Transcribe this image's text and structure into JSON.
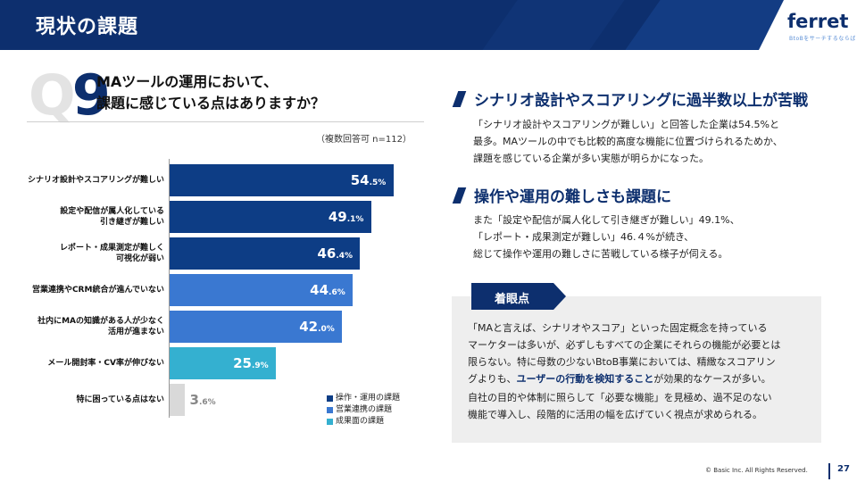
{
  "header": {
    "title": "現状の課題",
    "brand": "ferret",
    "brand_tagline": "BtoBをサーチするならば"
  },
  "question": {
    "mark_q": "Q",
    "mark_num": "9",
    "line1": "MAツールの運用において、",
    "line2": "課題に感じている点はありますか？",
    "note": "（複数回答可 n=112）"
  },
  "chart_data": {
    "type": "bar",
    "orientation": "horizontal",
    "unit": "%",
    "xlim": [
      0,
      60
    ],
    "categories": [
      [
        "シナリオ設計やスコアリングが難しい"
      ],
      [
        "設定や配信が属人化している",
        "引き継ぎが難しい"
      ],
      [
        "レポート・成果測定が難しく",
        "可視化が弱い"
      ],
      [
        "営業連携やCRM統合が進んでいない"
      ],
      [
        "社内にMAの知識がある人が少なく",
        "活用が進まない"
      ],
      [
        "メール開封率・CV率が伸びない"
      ],
      [
        "特に困っている点はない"
      ]
    ],
    "values": [
      54.5,
      49.1,
      46.4,
      44.6,
      42.0,
      25.9,
      3.6
    ],
    "value_labels": [
      {
        "int": "54",
        "dec": ".5%"
      },
      {
        "int": "49",
        "dec": ".1%"
      },
      {
        "int": "46",
        "dec": ".4%"
      },
      {
        "int": "44",
        "dec": ".6%"
      },
      {
        "int": "42",
        "dec": ".0%"
      },
      {
        "int": "25",
        "dec": ".9%"
      },
      {
        "int": "3",
        "dec": ".6%"
      }
    ],
    "bar_groups": [
      "ops",
      "ops",
      "ops",
      "sales",
      "sales",
      "result",
      "none"
    ],
    "colors": {
      "ops": "#0d3d85",
      "sales": "#3a78d1",
      "result": "#34b0d0",
      "none": "#d9d9d9"
    },
    "legend": [
      {
        "label": "操作・運用の課題",
        "color": "#0d3d85"
      },
      {
        "label": "営業連携の課題",
        "color": "#3a78d1"
      },
      {
        "label": "成果面の課題",
        "color": "#34b0d0"
      }
    ]
  },
  "section1": {
    "heading": "シナリオ設計やスコアリングに過半数以上が苦戦",
    "lines": [
      "「シナリオ設計やスコアリングが難しい」と回答した企業は54.5%と",
      "最多。MAツールの中でも比較的高度な機能に位置づけられるためか、",
      "課題を感じている企業が多い実態が明らかになった。"
    ]
  },
  "section2": {
    "heading": "操作や運用の難しさも課題に",
    "lines": [
      "また「設定や配信が属人化して引き継ぎが難しい」49.1%、",
      "「レポート・成果測定が難しい」46.４%が続き、",
      "総じて操作や運用の難しさに苦戦している様子が伺える。"
    ]
  },
  "focus": {
    "tag": "着眼点",
    "p1_lines": [
      "「MAと言えば、シナリオやスコア」といった固定概念を持っている",
      "マーケターは多いが、必ずしもすべての企業にそれらの機能が必要とは",
      "限らない。特に母数の少ないBtoB事業においては、精緻なスコアリン"
    ],
    "p1_last_pre": "グよりも、",
    "p1_last_bold": "ユーザーの行動を検知すること",
    "p1_last_post": "が効果的なケースが多い。",
    "p2_lines": [
      "自社の目的や体制に照らして「必要な機能」を見極め、過不足のない",
      "機能で導入し、段階的に活用の幅を広げていく視点が求められる。"
    ]
  },
  "footer": {
    "copyright": "© Basic Inc. All Rights Reserved.",
    "page": "27"
  }
}
